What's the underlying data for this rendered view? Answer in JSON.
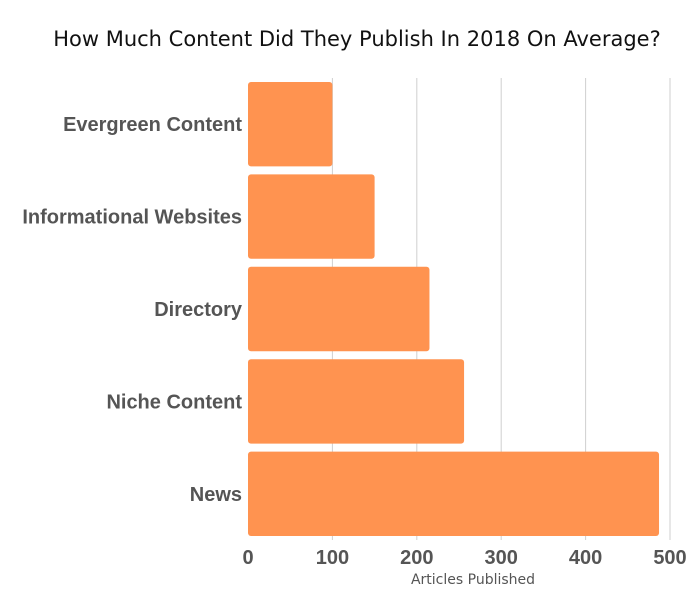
{
  "chart_data": {
    "type": "bar",
    "orientation": "horizontal",
    "title": "How Much Content Did They Publish In 2018 On Average?",
    "xlabel": "Articles Published",
    "ylabel": "",
    "categories": [
      "Evergreen Content",
      "Informational Websites",
      "Directory",
      "Niche Content",
      "News"
    ],
    "values": [
      100,
      150,
      215,
      256,
      487
    ],
    "xlim": [
      0,
      500
    ],
    "x_ticks": [
      "0",
      "100",
      "200",
      "300",
      "400",
      "500"
    ],
    "grid": true,
    "legend": "none",
    "bar_color": "#FF9350"
  }
}
